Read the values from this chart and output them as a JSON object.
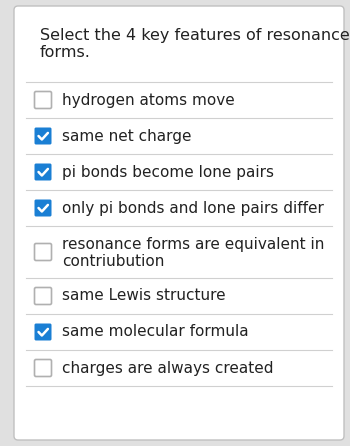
{
  "title_line1": "Select the 4 key features of resonance",
  "title_line2": "forms.",
  "title_fontsize": 11.5,
  "outer_bg": "#e0e0e0",
  "card_bg": "#ffffff",
  "border_color": "#c0c0c0",
  "separator_color": "#d0d0d0",
  "checkbox_checked_color": "#1a7fd4",
  "checkbox_unchecked_color": "#ffffff",
  "checkbox_border_unchecked": "#b0b0b0",
  "text_color": "#222222",
  "items": [
    {
      "label": "hydrogen atoms move",
      "checked": false,
      "multiline": false,
      "label2": ""
    },
    {
      "label": "same net charge",
      "checked": true,
      "multiline": false,
      "label2": ""
    },
    {
      "label": "pi bonds become lone pairs",
      "checked": true,
      "multiline": false,
      "label2": ""
    },
    {
      "label": "only pi bonds and lone pairs differ",
      "checked": true,
      "multiline": false,
      "label2": ""
    },
    {
      "label": "resonance forms are equivalent in",
      "checked": false,
      "multiline": true,
      "label2": "contriubution"
    },
    {
      "label": "same Lewis structure",
      "checked": false,
      "multiline": false,
      "label2": ""
    },
    {
      "label": "same molecular formula",
      "checked": true,
      "multiline": false,
      "label2": ""
    },
    {
      "label": "charges are always created",
      "checked": false,
      "multiline": false,
      "label2": ""
    }
  ],
  "item_fontsize": 11.0,
  "figsize": [
    3.5,
    4.46
  ],
  "dpi": 100
}
